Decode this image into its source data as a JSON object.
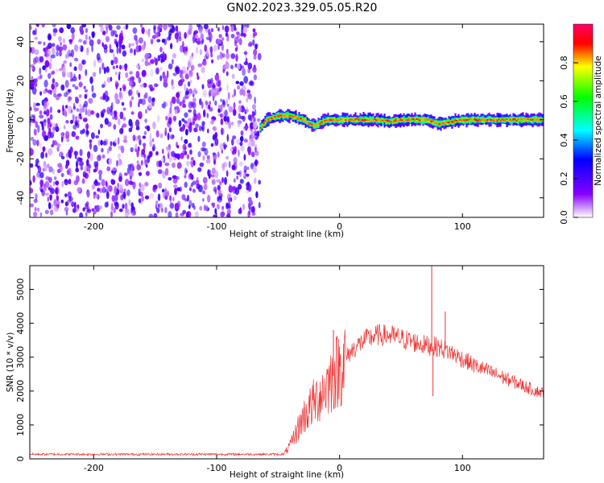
{
  "page": {
    "title": "GN02.2023.329.05.05.R20"
  },
  "colors": {
    "snr_line": "#ee3333",
    "frame": "#000000"
  },
  "chart_data": [
    {
      "type": "heatmap",
      "title": "GN02.2023.329.05.05.R20",
      "xlabel": "Height of straight line (km)",
      "ylabel": "Frequency (Hz)",
      "xlim": [
        -252,
        166
      ],
      "ylim": [
        -50,
        49
      ],
      "xticks": [
        -200,
        -100,
        0,
        100
      ],
      "yticks": [
        -40,
        -20,
        0,
        20,
        40
      ],
      "colorbar": {
        "label": "Normalized spectral amplitude",
        "range": [
          0,
          1
        ],
        "ticks": [
          0.0,
          0.2,
          0.4,
          0.6,
          0.8
        ],
        "colormap": "rainbow"
      },
      "noise_region": {
        "x_range": [
          -252,
          -65
        ],
        "amplitude_range": [
          0.0,
          0.25
        ]
      },
      "signal_trace": {
        "x": [
          -65,
          -60,
          -55,
          -50,
          -45,
          -40,
          -35,
          -30,
          -25,
          -20,
          -15,
          -10,
          0,
          10,
          20,
          30,
          40,
          50,
          60,
          70,
          80,
          90,
          100,
          110,
          120,
          130,
          140,
          150,
          160,
          166
        ],
        "frequency": [
          -4,
          0,
          1,
          2,
          2,
          2,
          1,
          0,
          -2,
          -3,
          -1,
          0,
          0,
          0,
          0,
          0,
          -1,
          0,
          0,
          0,
          -2,
          -1,
          0,
          0,
          0,
          0,
          0,
          0,
          0,
          0
        ],
        "peak_amplitude": 0.95
      }
    },
    {
      "type": "line",
      "xlabel": "Height of straight line (km)",
      "ylabel": "SNR (10 * v/v)",
      "xlim": [
        -252,
        166
      ],
      "ylim": [
        0,
        5700
      ],
      "xticks": [
        -200,
        -100,
        0,
        100
      ],
      "yticks": [
        0,
        1000,
        2000,
        3000,
        4000,
        5000
      ],
      "series": [
        {
          "x": [
            -252,
            -200,
            -150,
            -100,
            -60,
            -45,
            -40,
            -35,
            -30,
            -20,
            -10,
            0,
            10,
            20,
            30,
            40,
            50,
            60,
            70,
            80,
            90,
            100,
            110,
            120,
            130,
            140,
            150,
            160,
            166
          ],
          "values": [
            150,
            150,
            150,
            150,
            150,
            150,
            400,
            800,
            1200,
            1700,
            2200,
            2700,
            3200,
            3500,
            3650,
            3650,
            3550,
            3450,
            3350,
            3300,
            3150,
            2950,
            2750,
            2600,
            2450,
            2300,
            2150,
            2000,
            1950
          ],
          "spikes": [
            {
              "x": 75,
              "y": 5700
            },
            {
              "x": 76,
              "y": 1850
            },
            {
              "x": 86,
              "y": 4350
            },
            {
              "x": -5,
              "y": 3800
            }
          ]
        }
      ]
    }
  ]
}
